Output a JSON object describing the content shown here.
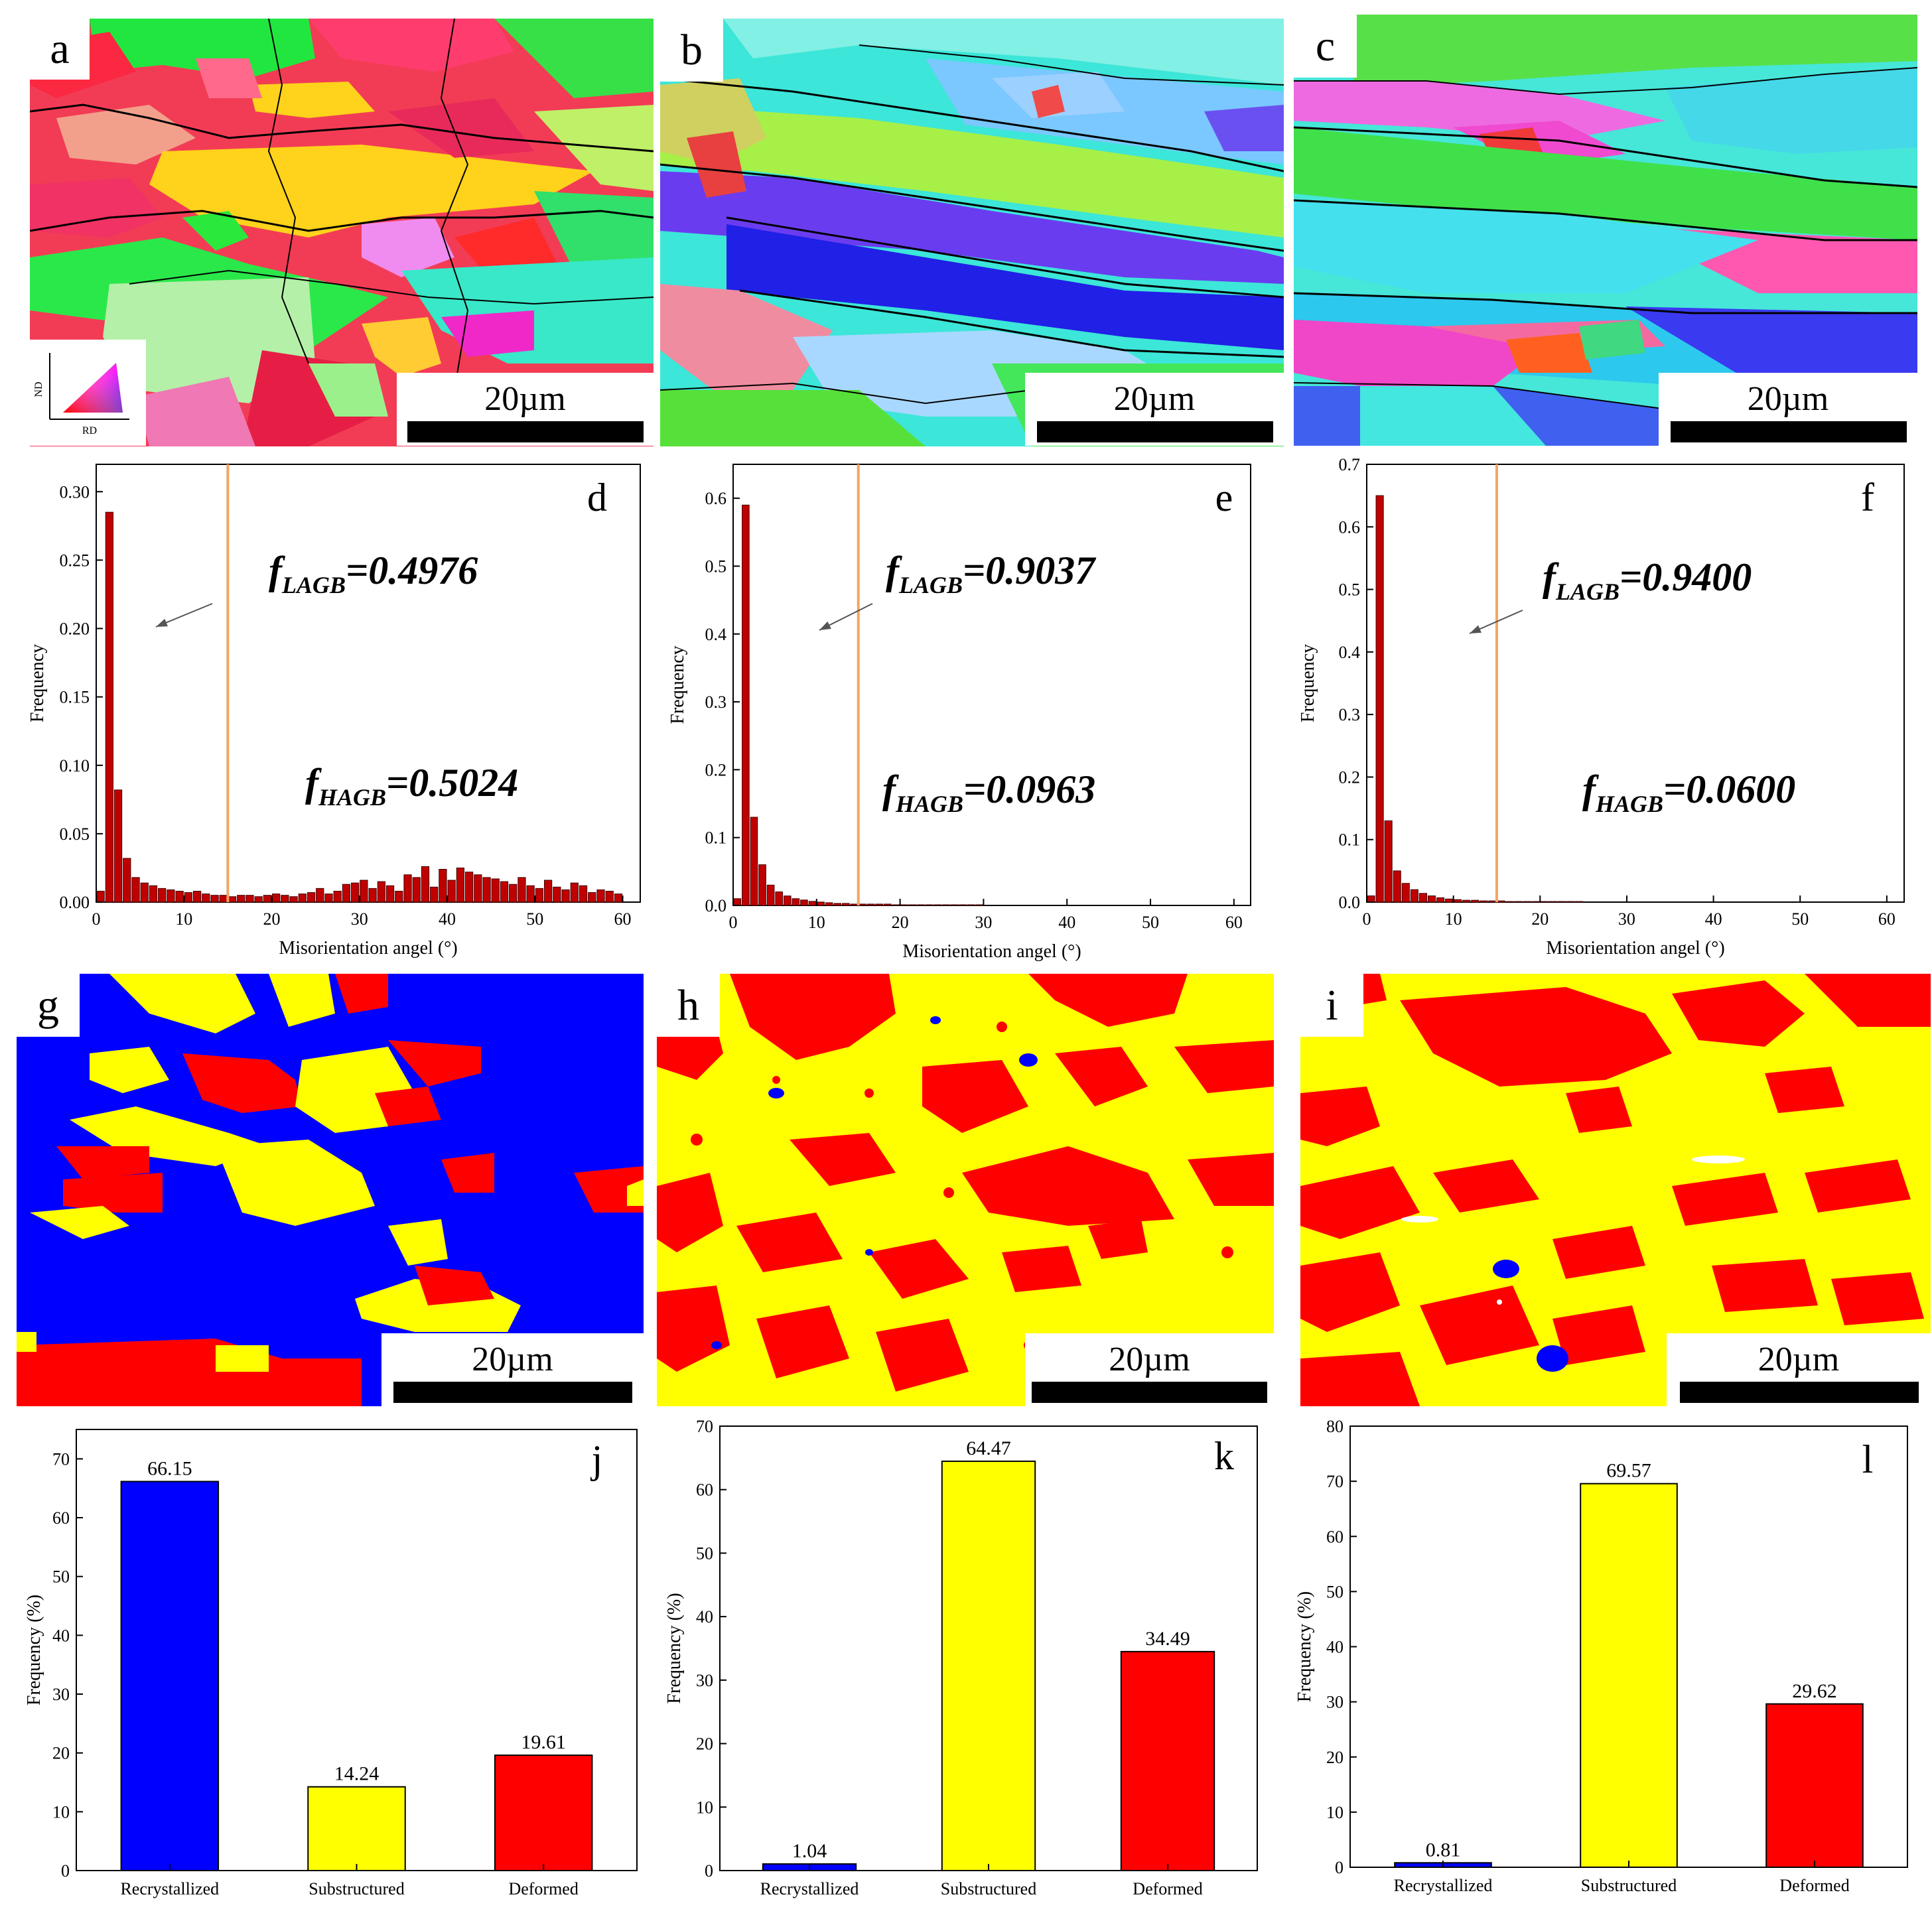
{
  "figure": {
    "maps": [
      {
        "id": "a",
        "label": "a",
        "scale": "20µm",
        "kind": "ipf"
      },
      {
        "id": "b",
        "label": "b",
        "scale": "20µm",
        "kind": "ipf"
      },
      {
        "id": "c",
        "label": "c",
        "scale": "20µm",
        "kind": "ipf"
      },
      {
        "id": "g",
        "label": "g",
        "scale": "20µm",
        "kind": "recryst"
      },
      {
        "id": "h",
        "label": "h",
        "scale": "20µm",
        "kind": "recryst"
      },
      {
        "id": "i",
        "label": "i",
        "scale": "20µm",
        "kind": "recryst"
      }
    ],
    "ipf_legend": {
      "nd": "ND",
      "rd": "RD"
    }
  },
  "chart_data": [
    {
      "id": "d",
      "type": "bar",
      "panel_label": "d",
      "xlabel": "Misorientation angel (°)",
      "ylabel": "Frequency",
      "xlim": [
        0,
        62
      ],
      "ylim": [
        0,
        0.32
      ],
      "xticks": [
        "0",
        "10",
        "20",
        "30",
        "40",
        "50",
        "60"
      ],
      "yticks": [
        "0.00",
        "0.05",
        "0.10",
        "0.15",
        "0.20",
        "0.25",
        "0.30"
      ],
      "bin_width": 1,
      "threshold": 15,
      "f_lagb": "=0.4976",
      "f_hagb": "=0.5024",
      "sub_lagb": "LAGB",
      "sub_hagb": "HAGB",
      "f_sym": "f",
      "values": [
        0.008,
        0.285,
        0.082,
        0.032,
        0.018,
        0.014,
        0.012,
        0.01,
        0.009,
        0.008,
        0.007,
        0.008,
        0.006,
        0.005,
        0.005,
        0.004,
        0.005,
        0.005,
        0.004,
        0.005,
        0.006,
        0.005,
        0.004,
        0.006,
        0.007,
        0.01,
        0.006,
        0.008,
        0.013,
        0.014,
        0.016,
        0.01,
        0.015,
        0.012,
        0.008,
        0.02,
        0.018,
        0.026,
        0.011,
        0.024,
        0.016,
        0.025,
        0.022,
        0.02,
        0.018,
        0.017,
        0.015,
        0.013,
        0.018,
        0.012,
        0.01,
        0.016,
        0.011,
        0.009,
        0.014,
        0.012,
        0.007,
        0.009,
        0.008,
        0.006
      ]
    },
    {
      "id": "e",
      "type": "bar",
      "panel_label": "e",
      "xlabel": "Misorientation angel (°)",
      "ylabel": "Frequency",
      "xlim": [
        0,
        62
      ],
      "ylim": [
        0,
        0.65
      ],
      "xticks": [
        "0",
        "10",
        "20",
        "30",
        "40",
        "50",
        "60"
      ],
      "yticks": [
        "0.0",
        "0.1",
        "0.2",
        "0.3",
        "0.4",
        "0.5",
        "0.6"
      ],
      "bin_width": 1,
      "threshold": 15,
      "f_lagb": "=0.9037",
      "f_hagb": "=0.0963",
      "sub_lagb": "LAGB",
      "sub_hagb": "HAGB",
      "f_sym": "f",
      "values": [
        0.01,
        0.59,
        0.13,
        0.06,
        0.03,
        0.02,
        0.014,
        0.01,
        0.008,
        0.006,
        0.005,
        0.004,
        0.003,
        0.003,
        0.002,
        0.002,
        0.002,
        0.002,
        0.002,
        0.001,
        0.001,
        0.001,
        0.001,
        0.001,
        0.001,
        0.001,
        0.001,
        0.001,
        0.001,
        0.001
      ]
    },
    {
      "id": "f",
      "type": "bar",
      "panel_label": "f",
      "xlabel": "Misorientation angel (°)",
      "ylabel": "Frequency",
      "xlim": [
        0,
        62
      ],
      "ylim": [
        0,
        0.7
      ],
      "xticks": [
        "0",
        "10",
        "20",
        "30",
        "40",
        "50",
        "60"
      ],
      "yticks": [
        "0.0",
        "0.1",
        "0.2",
        "0.3",
        "0.4",
        "0.5",
        "0.6",
        "0.7"
      ],
      "bin_width": 1,
      "threshold": 15,
      "f_lagb": "=0.9400",
      "f_hagb": "=0.0600",
      "sub_lagb": "LAGB",
      "sub_hagb": "HAGB",
      "f_sym": "f",
      "values": [
        0.01,
        0.65,
        0.13,
        0.05,
        0.03,
        0.02,
        0.014,
        0.01,
        0.007,
        0.005,
        0.004,
        0.003,
        0.003,
        0.002,
        0.002,
        0.002,
        0.001,
        0.001,
        0.001,
        0.001,
        0.001,
        0.001,
        0.001,
        0.001,
        0.001
      ]
    },
    {
      "id": "j",
      "type": "bar",
      "panel_label": "j",
      "xlabel": "",
      "ylabel": "Frequency (%)",
      "categories": [
        "Recrystallized",
        "Substructured",
        "Deformed"
      ],
      "values": [
        66.15,
        14.24,
        19.61
      ],
      "labels": [
        "66.15",
        "14.24",
        "19.61"
      ],
      "colors": [
        "#0000ff",
        "#ffff00",
        "#ff0000"
      ],
      "ylim": [
        0,
        75
      ],
      "yticks": [
        "0",
        "10",
        "20",
        "30",
        "40",
        "50",
        "60",
        "70"
      ]
    },
    {
      "id": "k",
      "type": "bar",
      "panel_label": "k",
      "xlabel": "",
      "ylabel": "Frequency (%)",
      "categories": [
        "Recrystallized",
        "Substructured",
        "Deformed"
      ],
      "values": [
        1.04,
        64.47,
        34.49
      ],
      "labels": [
        "1.04",
        "64.47",
        "34.49"
      ],
      "colors": [
        "#0000ff",
        "#ffff00",
        "#ff0000"
      ],
      "ylim": [
        0,
        70
      ],
      "yticks": [
        "0",
        "10",
        "20",
        "30",
        "40",
        "50",
        "60",
        "70"
      ]
    },
    {
      "id": "l",
      "type": "bar",
      "panel_label": "l",
      "xlabel": "",
      "ylabel": "Frequency (%)",
      "categories": [
        "Recrystallized",
        "Substructured",
        "Deformed"
      ],
      "values": [
        0.81,
        69.57,
        29.62
      ],
      "labels": [
        "0.81",
        "69.57",
        "29.62"
      ],
      "colors": [
        "#0000ff",
        "#ffff00",
        "#ff0000"
      ],
      "ylim": [
        0,
        80
      ],
      "yticks": [
        "0",
        "10",
        "20",
        "30",
        "40",
        "50",
        "60",
        "70",
        "80"
      ]
    }
  ]
}
